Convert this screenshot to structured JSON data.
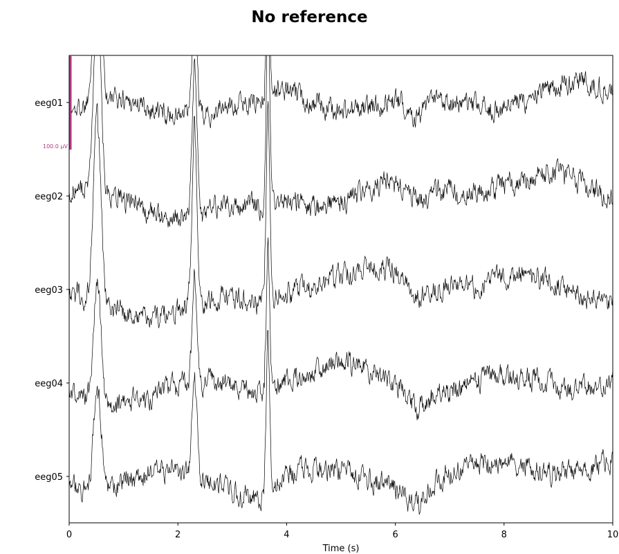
{
  "chart_data": {
    "type": "line",
    "title": "No reference",
    "xlabel": "Time (s)",
    "ylabel": "",
    "xlim": [
      0,
      10
    ],
    "x_ticks": [
      0,
      2,
      4,
      6,
      8,
      10
    ],
    "x_tick_labels": [
      "0",
      "2",
      "4",
      "6",
      "8",
      "10"
    ],
    "channels": [
      "eeg01",
      "eeg02",
      "eeg03",
      "eeg04",
      "eeg05"
    ],
    "scale_bar": {
      "label": "100.0 µV",
      "value": 100,
      "unit": "µV",
      "color": "#b03a7f"
    },
    "trace_color": "#000000",
    "signal_model": {
      "description_peaks": [
        {
          "t": 0.52,
          "amp": [
            200,
            190,
            200,
            135,
            115
          ],
          "width": 0.07
        },
        {
          "t": 2.31,
          "amp": [
            120,
            160,
            200,
            115,
            110
          ],
          "width": 0.045
        },
        {
          "t": 3.66,
          "amp": [
            150,
            210,
            215,
            140,
            155
          ],
          "width": 0.03
        }
      ],
      "noise_amp": 12,
      "slow_dip": {
        "t": 6.4,
        "amp": -20
      }
    }
  }
}
